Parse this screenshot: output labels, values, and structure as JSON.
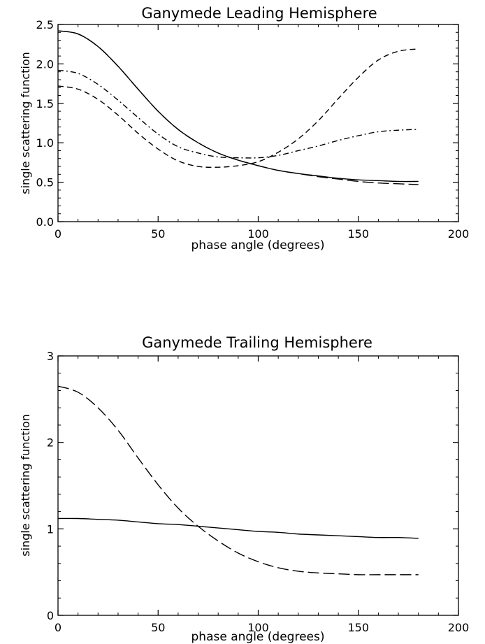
{
  "chart_data": [
    {
      "type": "line",
      "title": "Ganymede Leading Hemisphere",
      "xlabel": "phase angle (degrees)",
      "ylabel": "single scattering function",
      "xlim": [
        0,
        200
      ],
      "ylim": [
        0,
        2.5
      ],
      "xticks": [
        "0",
        "50",
        "100",
        "150",
        "200"
      ],
      "yticks": [
        "0.0",
        "0.5",
        "1.0",
        "1.5",
        "2.0",
        "2.5"
      ],
      "x": [
        0,
        10,
        20,
        30,
        40,
        50,
        60,
        70,
        80,
        90,
        100,
        110,
        120,
        130,
        140,
        150,
        160,
        170,
        180
      ],
      "series": [
        {
          "style": "solid",
          "values": [
            2.42,
            2.38,
            2.22,
            1.97,
            1.68,
            1.4,
            1.17,
            1.0,
            0.87,
            0.78,
            0.71,
            0.65,
            0.61,
            0.58,
            0.55,
            0.53,
            0.52,
            0.51,
            0.51
          ]
        },
        {
          "style": "dash-dot",
          "values": [
            1.92,
            1.88,
            1.74,
            1.54,
            1.32,
            1.11,
            0.95,
            0.87,
            0.82,
            0.81,
            0.81,
            0.84,
            0.9,
            0.96,
            1.03,
            1.09,
            1.14,
            1.16,
            1.17
          ]
        },
        {
          "style": "dashed-2",
          "values": [
            1.72,
            1.68,
            1.55,
            1.35,
            1.12,
            0.92,
            0.77,
            0.7,
            0.69,
            0.71,
            0.76,
            0.88,
            1.05,
            1.28,
            1.56,
            1.83,
            2.05,
            2.16,
            2.19
          ]
        },
        {
          "style": "long-dash",
          "values": [
            2.42,
            2.38,
            2.22,
            1.97,
            1.68,
            1.4,
            1.17,
            1.0,
            0.87,
            0.78,
            0.71,
            0.65,
            0.61,
            0.57,
            0.54,
            0.51,
            0.49,
            0.48,
            0.47
          ]
        }
      ]
    },
    {
      "type": "line",
      "title": "Ganymede Trailing Hemisphere",
      "xlabel": "phase angle (degrees)",
      "ylabel": "single scattering function",
      "xlim": [
        0,
        200
      ],
      "ylim": [
        0,
        3
      ],
      "xticks": [
        "0",
        "50",
        "100",
        "150",
        "200"
      ],
      "yticks": [
        "0",
        "1",
        "2",
        "3"
      ],
      "x": [
        0,
        10,
        20,
        30,
        40,
        50,
        60,
        70,
        80,
        90,
        100,
        110,
        120,
        130,
        140,
        150,
        160,
        170,
        180
      ],
      "series": [
        {
          "style": "solid",
          "values": [
            1.12,
            1.12,
            1.11,
            1.1,
            1.08,
            1.06,
            1.05,
            1.03,
            1.01,
            0.99,
            0.97,
            0.96,
            0.94,
            0.93,
            0.92,
            0.91,
            0.9,
            0.9,
            0.89
          ]
        },
        {
          "style": "long-dash",
          "values": [
            2.65,
            2.58,
            2.4,
            2.14,
            1.82,
            1.51,
            1.24,
            1.03,
            0.86,
            0.72,
            0.62,
            0.55,
            0.51,
            0.49,
            0.48,
            0.47,
            0.47,
            0.47,
            0.47
          ]
        }
      ]
    }
  ]
}
